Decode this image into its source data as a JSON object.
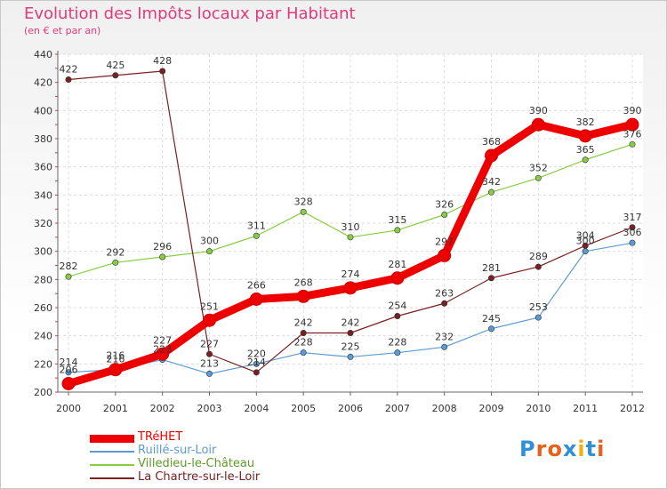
{
  "chart_data": {
    "type": "line",
    "title": "Evolution des Impôts locaux par Habitant",
    "subtitle": "(en € et par an)",
    "xlabel": "",
    "ylabel": "",
    "categories": [
      "2000",
      "2001",
      "2002",
      "2003",
      "2004",
      "2005",
      "2006",
      "2007",
      "2008",
      "2009",
      "2010",
      "2011",
      "2012"
    ],
    "ylim": [
      200,
      440
    ],
    "yticks": [
      200,
      220,
      240,
      260,
      280,
      300,
      320,
      340,
      360,
      380,
      400,
      420,
      440
    ],
    "grid": true,
    "legend_position": "bottom-left",
    "series": [
      {
        "name": "TRéHET",
        "color": "#ee0000",
        "values": [
          206,
          216,
          227,
          251,
          266,
          268,
          274,
          281,
          297,
          368,
          390,
          382,
          390
        ],
        "labels": [
          "206",
          "216",
          "227",
          "251",
          "266",
          "268",
          "274",
          "281",
          "297",
          "368",
          "390",
          "382",
          "390"
        ]
      },
      {
        "name": "Ruillé-sur-Loir",
        "color": "#5b9bd5",
        "values": [
          214,
          216,
          223,
          213,
          220,
          228,
          225,
          228,
          232,
          245,
          253,
          300,
          306
        ],
        "labels": [
          "214",
          "216",
          "223",
          "213",
          "220",
          "228",
          "225",
          "228",
          "232",
          "245",
          "253",
          "300",
          "306"
        ]
      },
      {
        "name": "Villedieu-le-Château",
        "color": "#88cc44",
        "values": [
          282,
          292,
          296,
          300,
          311,
          328,
          310,
          315,
          326,
          342,
          352,
          365,
          376
        ],
        "labels": [
          "282",
          "292",
          "296",
          "300",
          "311",
          "328",
          "310",
          "315",
          "326",
          "342",
          "352",
          "365",
          "376"
        ]
      },
      {
        "name": "La Chartre-sur-le-Loir",
        "color": "#7a2020",
        "values": [
          422,
          425,
          428,
          227,
          214,
          242,
          242,
          254,
          263,
          281,
          289,
          304,
          317
        ],
        "labels": [
          "422",
          "425",
          "428",
          "227",
          "214",
          "242",
          "242",
          "254",
          "263",
          "281",
          "289",
          "304",
          "317"
        ]
      }
    ]
  },
  "logo": {
    "text": "Proxiti",
    "letter_colors": [
      "#2f8fd8",
      "#e8611a",
      "#e8611a",
      "#2f8fd8",
      "#f1b211",
      "#2f8fd8",
      "#e8611a"
    ]
  }
}
